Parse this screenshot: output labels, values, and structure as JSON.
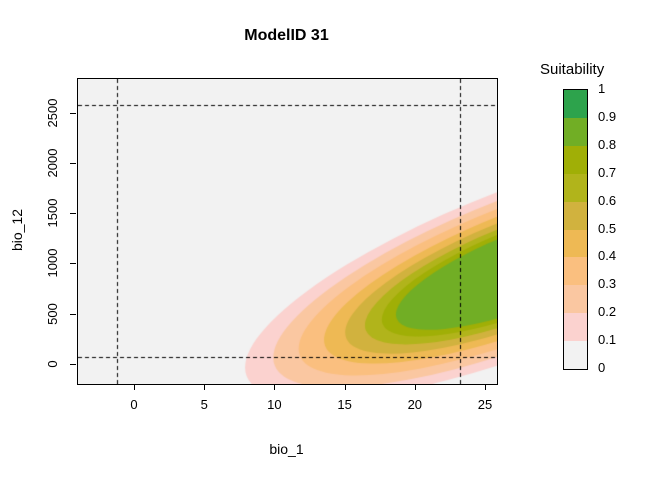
{
  "window": {
    "title": "ModelID 31"
  },
  "chart_data": {
    "type": "filled_contour",
    "title": "ModelID 31",
    "xlabel": "bio_1",
    "ylabel": "bio_12",
    "x_ticks": [
      0,
      5,
      10,
      15,
      20,
      25
    ],
    "y_ticks": [
      0,
      500,
      1000,
      1500,
      2000,
      2500
    ],
    "xlim": [
      -4.1,
      25.8
    ],
    "ylim": [
      -190,
      2840
    ],
    "grid": false,
    "levels": [
      0,
      0.1,
      0.2,
      0.3,
      0.4,
      0.5,
      0.6,
      0.7,
      0.8,
      0.9,
      1
    ],
    "palette": [
      "#f2f2f2",
      "#fbd2cf",
      "#fac7a1",
      "#fabf7f",
      "#eeb954",
      "#d1b23e",
      "#b1b41b",
      "#a0af06",
      "#71ae25",
      "#2da34c"
    ],
    "background_band": "0-0.1",
    "visible_max_band": "0.8-0.9",
    "dashed_reference_lines": {
      "x": [
        -1.2,
        23.2
      ],
      "y": [
        70,
        2570
      ]
    },
    "suitability_surface": {
      "shape": "tilted_ellipse_contours",
      "center": [
        28.0,
        950
      ],
      "angle_deg": -21,
      "semi_axes_data_units": [
        21.4,
        815
      ],
      "contour_levels_drawn": [
        0.1,
        0.2,
        0.3,
        0.4,
        0.5,
        0.6,
        0.7,
        0.8
      ],
      "contour_radius_scales": [
        1.0,
        0.9,
        0.81,
        0.72,
        0.645,
        0.575,
        0.515,
        0.465
      ]
    },
    "legend": {
      "title": "Suitability",
      "position": "right",
      "tick_labels": [
        "1",
        "0.9",
        "0.8",
        "0.7",
        "0.6",
        "0.5",
        "0.4",
        "0.3",
        "0.2",
        "0.1",
        "0"
      ]
    }
  }
}
